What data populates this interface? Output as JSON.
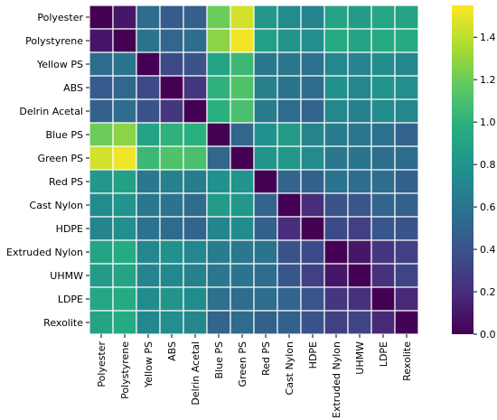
{
  "chart_data": {
    "type": "heatmap",
    "title": "",
    "xlabel": "",
    "ylabel": "",
    "row_labels": [
      "Polyester",
      "Polystyrene",
      "Yellow PS",
      "ABS",
      "Delrin Acetal",
      "Blue PS",
      "Green PS",
      "Red PS",
      "Cast Nylon",
      "HDPE",
      "Extruded Nylon",
      "UHMW",
      "LDPE",
      "Rexolite"
    ],
    "col_labels": [
      "Polyester",
      "Polystyrene",
      "Yellow PS",
      "ABS",
      "Delrin Acetal",
      "Blue PS",
      "Green PS",
      "Red PS",
      "Cast Nylon",
      "HDPE",
      "Extruded Nylon",
      "UHMW",
      "LDPE",
      "Rexolite"
    ],
    "values": [
      [
        0.0,
        0.1,
        0.55,
        0.45,
        0.48,
        1.2,
        1.45,
        0.82,
        0.75,
        0.7,
        0.9,
        0.85,
        0.92,
        0.9
      ],
      [
        0.1,
        0.0,
        0.6,
        0.52,
        0.56,
        1.28,
        1.52,
        0.88,
        0.8,
        0.76,
        0.95,
        0.9,
        0.95,
        0.95
      ],
      [
        0.55,
        0.6,
        0.0,
        0.35,
        0.4,
        0.9,
        1.05,
        0.62,
        0.62,
        0.58,
        0.72,
        0.7,
        0.75,
        0.72
      ],
      [
        0.45,
        0.52,
        0.35,
        0.0,
        0.25,
        1.0,
        1.12,
        0.68,
        0.6,
        0.55,
        0.78,
        0.72,
        0.8,
        0.76
      ],
      [
        0.48,
        0.56,
        0.4,
        0.25,
        0.0,
        0.98,
        1.1,
        0.65,
        0.55,
        0.5,
        0.72,
        0.68,
        0.75,
        0.72
      ],
      [
        1.2,
        1.28,
        0.9,
        1.0,
        0.98,
        0.0,
        0.52,
        0.78,
        0.85,
        0.7,
        0.65,
        0.62,
        0.58,
        0.5
      ],
      [
        1.45,
        1.52,
        1.05,
        1.12,
        1.1,
        0.52,
        0.0,
        0.8,
        0.82,
        0.75,
        0.62,
        0.6,
        0.56,
        0.55
      ],
      [
        0.82,
        0.88,
        0.62,
        0.68,
        0.65,
        0.78,
        0.8,
        0.0,
        0.5,
        0.48,
        0.6,
        0.56,
        0.56,
        0.48
      ],
      [
        0.75,
        0.8,
        0.62,
        0.6,
        0.55,
        0.85,
        0.82,
        0.5,
        0.0,
        0.2,
        0.4,
        0.42,
        0.5,
        0.48
      ],
      [
        0.7,
        0.76,
        0.58,
        0.55,
        0.5,
        0.7,
        0.75,
        0.48,
        0.2,
        0.0,
        0.35,
        0.3,
        0.42,
        0.4
      ],
      [
        0.9,
        0.95,
        0.72,
        0.78,
        0.72,
        0.65,
        0.62,
        0.6,
        0.4,
        0.35,
        0.0,
        0.1,
        0.25,
        0.3
      ],
      [
        0.85,
        0.9,
        0.7,
        0.72,
        0.68,
        0.62,
        0.6,
        0.56,
        0.42,
        0.3,
        0.1,
        0.0,
        0.22,
        0.32
      ],
      [
        0.92,
        0.95,
        0.75,
        0.8,
        0.75,
        0.58,
        0.56,
        0.56,
        0.5,
        0.42,
        0.25,
        0.22,
        0.0,
        0.18
      ],
      [
        0.9,
        0.95,
        0.72,
        0.76,
        0.72,
        0.5,
        0.55,
        0.48,
        0.48,
        0.4,
        0.3,
        0.32,
        0.18,
        0.0
      ]
    ],
    "colormap": "viridis",
    "colormap_stops": [
      "#440154",
      "#472c7a",
      "#3b518b",
      "#2c718e",
      "#21908d",
      "#27ad81",
      "#5cc863",
      "#aadc32",
      "#fde725"
    ],
    "vmin": 0.0,
    "vmax": 1.55,
    "colorbar_ticks": [
      "0.0",
      "0.2",
      "0.4",
      "0.6",
      "0.8",
      "1.0",
      "1.2",
      "1.4"
    ],
    "colorbar_tick_values": [
      0.0,
      0.2,
      0.4,
      0.6,
      0.8,
      1.0,
      1.2,
      1.4
    ],
    "grid_color": "#ffffff",
    "legend": "colorbar-right"
  }
}
